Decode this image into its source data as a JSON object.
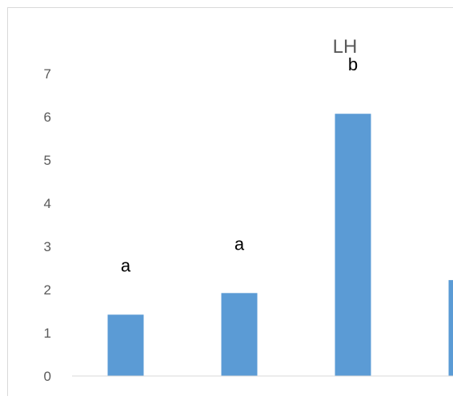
{
  "chart_data": {
    "type": "bar",
    "title": "LH",
    "categories": [
      "",
      "",
      "",
      ""
    ],
    "values": [
      1.42,
      1.92,
      6.07,
      2.22
    ],
    "annotations": [
      "a",
      "a",
      "b",
      ""
    ],
    "ylim": [
      0,
      7
    ],
    "yticks": [
      0,
      1,
      2,
      3,
      4,
      5,
      6,
      7
    ],
    "grid": false,
    "bar_color": "#5b9bd5",
    "axis_color": "#d9d9d9",
    "border_color": "#d9d9d9",
    "text_color": "#595959"
  }
}
